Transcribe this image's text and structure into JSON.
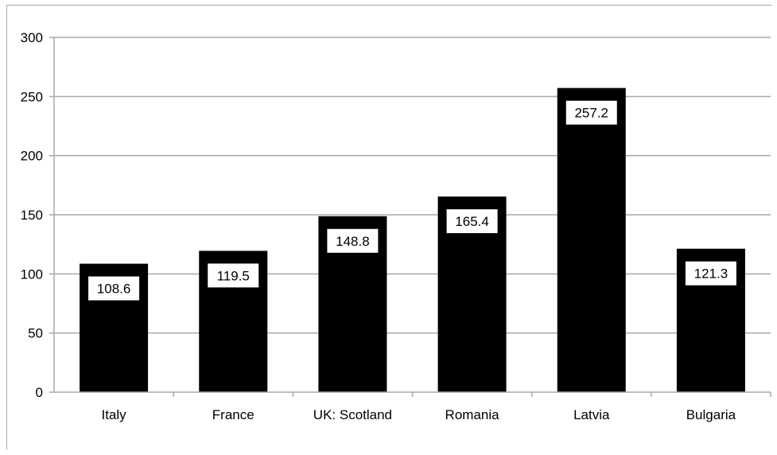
{
  "chart_data": {
    "type": "bar",
    "categories": [
      "Italy",
      "France",
      "UK: Scotland",
      "Romania",
      "Latvia",
      "Bulgaria"
    ],
    "values": [
      108.6,
      119.5,
      148.8,
      165.4,
      257.2,
      121.3
    ],
    "data_labels": [
      "108.6",
      "119.5",
      "148.8",
      "165.4",
      "257.2",
      "121.3"
    ],
    "title": "",
    "xlabel": "",
    "ylabel": "",
    "ylim": [
      0,
      300
    ],
    "yticks": [
      0,
      50,
      100,
      150,
      200,
      250,
      300
    ],
    "ytick_labels": [
      "0",
      "50",
      "100",
      "150",
      "200",
      "250",
      "300"
    ],
    "grid": true,
    "legend": "none",
    "colors": {
      "bar": "#000000",
      "grid": "#a8a8a8",
      "label_box": "#ffffff"
    }
  }
}
